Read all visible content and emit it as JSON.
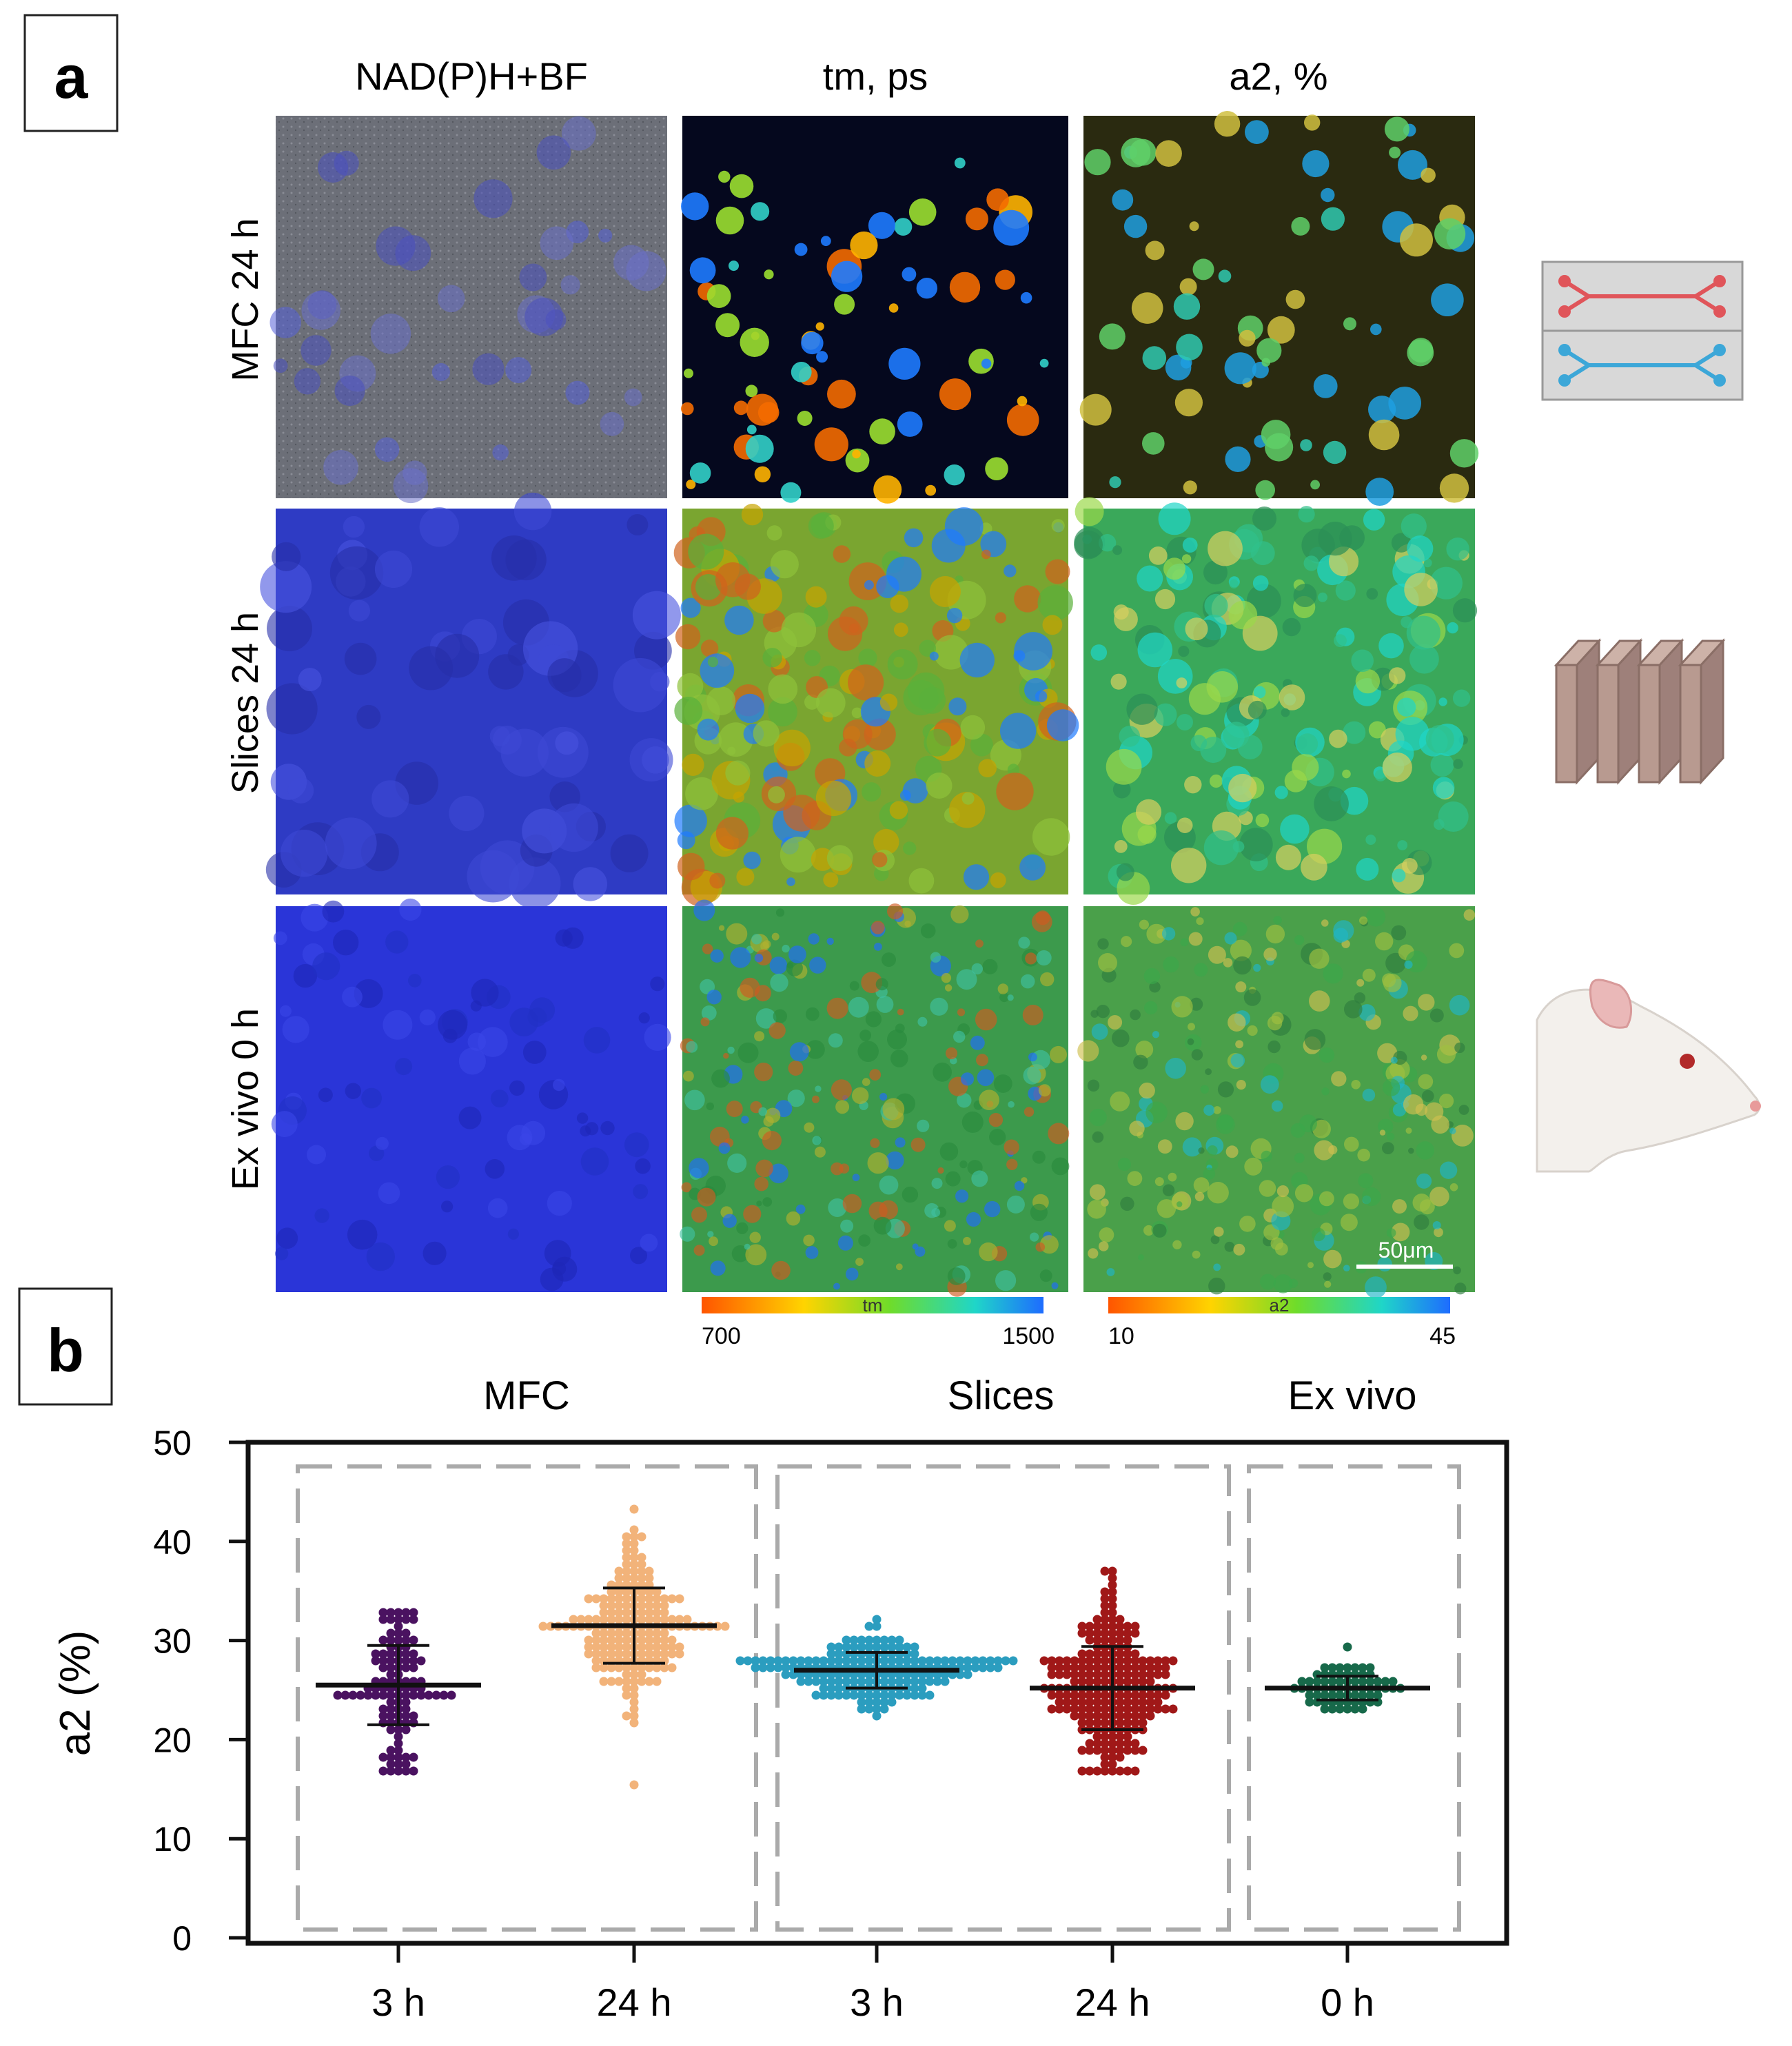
{
  "panel_a": {
    "label": "a",
    "column_headers": [
      "NAD(P)H+BF",
      "tm, ps",
      "a2, %"
    ],
    "row_labels": [
      "MFC 24 h",
      "Slices 24 h",
      "Ex vivo 0 h"
    ],
    "scale_bar": "50μm",
    "colorbars": [
      {
        "name": "tm",
        "min": "700",
        "max": "1500"
      },
      {
        "name": "a2",
        "min": "10",
        "max": "45"
      }
    ],
    "icons": [
      "microfluidic-chip-icon",
      "tissue-slices-icon",
      "rat-head-icon"
    ],
    "colors": {
      "nadh_blue": "#2a35d8",
      "tm_low": "#ff5500",
      "tm_high": "#1e6cff"
    }
  },
  "panel_b": {
    "label": "b",
    "group_labels": [
      "MFC",
      "Slices",
      "Ex vivo"
    ]
  },
  "chart_data": {
    "type": "scatter",
    "subtype": "dot-plot (beeswarm) with mean ± SD",
    "title": "",
    "xlabel": "",
    "ylabel": "a2 (%)",
    "ylim": [
      0,
      50
    ],
    "yticks": [
      0,
      10,
      20,
      30,
      40,
      50
    ],
    "categories": [
      "3 h",
      "24 h",
      "3 h",
      "24 h",
      "0 h"
    ],
    "groups": [
      {
        "name": "MFC",
        "categories": [
          0,
          1
        ]
      },
      {
        "name": "Slices",
        "categories": [
          2,
          3
        ]
      },
      {
        "name": "Ex vivo",
        "categories": [
          4
        ]
      }
    ],
    "series": [
      {
        "name": "MFC 3 h",
        "color": "#4a1260",
        "mean": 25.5,
        "sd": 4.0,
        "n": 110,
        "min": 16.5,
        "max": 33.0
      },
      {
        "name": "MFC 24 h",
        "color": "#f2b37a",
        "mean": 31.5,
        "sd": 3.8,
        "n": 200,
        "min": 15.5,
        "max": 43.0
      },
      {
        "name": "Slices 3 h",
        "color": "#2b9dbf",
        "mean": 27.0,
        "sd": 1.8,
        "n": 190,
        "min": 22.5,
        "max": 32.0
      },
      {
        "name": "Slices 24 h",
        "color": "#a01818",
        "mean": 25.2,
        "sd": 4.2,
        "n": 240,
        "min": 17.0,
        "max": 37.0
      },
      {
        "name": "Ex vivo 0 h",
        "color": "#17694a",
        "mean": 25.2,
        "sd": 1.2,
        "n": 70,
        "min": 23.0,
        "max": 29.0
      }
    ]
  }
}
